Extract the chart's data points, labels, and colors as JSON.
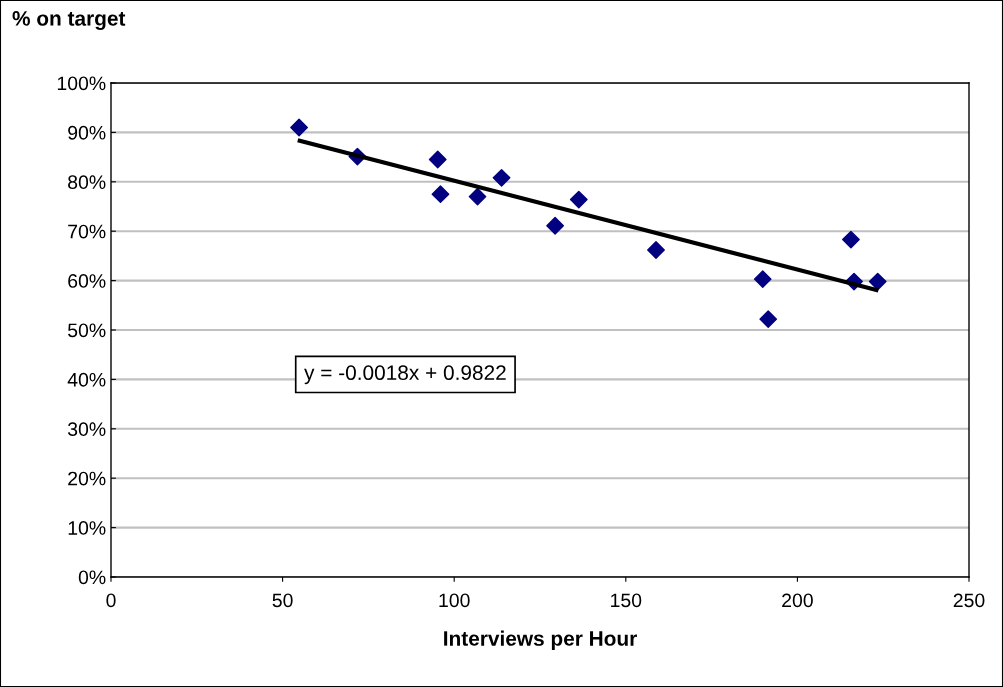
{
  "chart_data": {
    "type": "scatter",
    "xlabel": "Interviews per Hour",
    "ylabel": "% on target",
    "series": [
      {
        "color": "#000080",
        "marker": "diamond",
        "x": [
          54.8,
          71.8,
          95.2,
          96.0,
          106.8,
          113.8,
          129.4,
          136.3,
          158.8,
          189.9,
          191.5,
          215.6,
          216.5,
          223.4
        ],
        "values": [
          91.0,
          85.1,
          84.5,
          77.5,
          77.0,
          80.8,
          71.1,
          76.4,
          66.2,
          60.3,
          52.2,
          68.3,
          59.8,
          59.8
        ]
      },
      {
        "type": "line",
        "color": "#000000",
        "marker": "none",
        "line_style": "solid",
        "x": [
          55,
          223
        ],
        "values": [
          88.3,
          58.1
        ]
      }
    ],
    "annotations": [
      "y = -0.0018x + 0.9822"
    ],
    "xlim": [
      0,
      250
    ],
    "xticks": [
      0,
      50,
      100,
      150,
      200,
      250
    ],
    "ylim": [
      0,
      100
    ],
    "yticks": [
      {
        "value": 0,
        "label": "0%"
      },
      {
        "value": 10,
        "label": "10%"
      },
      {
        "value": 20,
        "label": "20%"
      },
      {
        "value": 30,
        "label": "30%"
      },
      {
        "value": 40,
        "label": "40%"
      },
      {
        "value": 50,
        "label": "50%"
      },
      {
        "value": 60,
        "label": "60%"
      },
      {
        "value": 70,
        "label": "70%"
      },
      {
        "value": 80,
        "label": "80%"
      },
      {
        "value": 90,
        "label": "90%"
      },
      {
        "value": 100,
        "label": "100%"
      }
    ],
    "grid": "y",
    "legend": false
  }
}
